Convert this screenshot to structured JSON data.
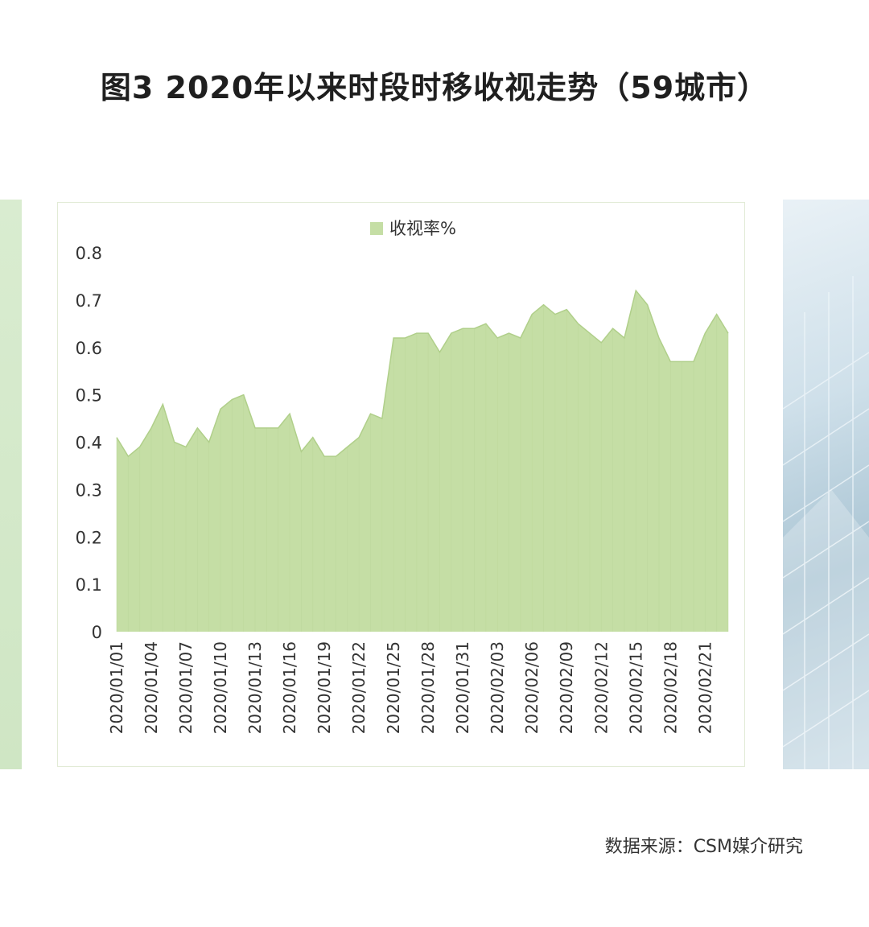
{
  "title": "图3  2020年以来时段时移收视走势（59城市）",
  "source": "数据来源：CSM媒介研究",
  "colors": {
    "area_fill": "#c5dea5",
    "area_line": "#b0cf8a",
    "left_strip": "#d3e8c8"
  },
  "chart_data": {
    "type": "area",
    "title": "",
    "xlabel": "",
    "ylabel": "",
    "legend": "top-center",
    "grid": false,
    "ylim": [
      0,
      0.8
    ],
    "yticks": [
      "0",
      "0.1",
      "0.2",
      "0.3",
      "0.4",
      "0.5",
      "0.6",
      "0.7",
      "0.8"
    ],
    "x_tick_labels": [
      "2020/01/01",
      "2020/01/04",
      "2020/01/07",
      "2020/01/10",
      "2020/01/13",
      "2020/01/16",
      "2020/01/19",
      "2020/01/22",
      "2020/01/25",
      "2020/01/28",
      "2020/01/31",
      "2020/02/03",
      "2020/02/06",
      "2020/02/09",
      "2020/02/12",
      "2020/02/15",
      "2020/02/18",
      "2020/02/21"
    ],
    "series": [
      {
        "name": "收视率%",
        "x": [
          "2020/01/01",
          "2020/01/02",
          "2020/01/03",
          "2020/01/04",
          "2020/01/05",
          "2020/01/06",
          "2020/01/07",
          "2020/01/08",
          "2020/01/09",
          "2020/01/10",
          "2020/01/11",
          "2020/01/12",
          "2020/01/13",
          "2020/01/14",
          "2020/01/15",
          "2020/01/16",
          "2020/01/17",
          "2020/01/18",
          "2020/01/19",
          "2020/01/20",
          "2020/01/21",
          "2020/01/22",
          "2020/01/23",
          "2020/01/24",
          "2020/01/25",
          "2020/01/26",
          "2020/01/27",
          "2020/01/28",
          "2020/01/29",
          "2020/01/30",
          "2020/01/31",
          "2020/02/01",
          "2020/02/02",
          "2020/02/03",
          "2020/02/04",
          "2020/02/05",
          "2020/02/06",
          "2020/02/07",
          "2020/02/08",
          "2020/02/09",
          "2020/02/10",
          "2020/02/11",
          "2020/02/12",
          "2020/02/13",
          "2020/02/14",
          "2020/02/15",
          "2020/02/16",
          "2020/02/17",
          "2020/02/18",
          "2020/02/19",
          "2020/02/20",
          "2020/02/21",
          "2020/02/22",
          "2020/02/23"
        ],
        "values": [
          0.41,
          0.37,
          0.39,
          0.43,
          0.48,
          0.4,
          0.39,
          0.43,
          0.4,
          0.47,
          0.49,
          0.5,
          0.43,
          0.43,
          0.43,
          0.46,
          0.38,
          0.41,
          0.37,
          0.37,
          0.39,
          0.41,
          0.46,
          0.45,
          0.62,
          0.62,
          0.63,
          0.63,
          0.59,
          0.63,
          0.64,
          0.64,
          0.65,
          0.62,
          0.63,
          0.62,
          0.67,
          0.69,
          0.67,
          0.68,
          0.65,
          0.63,
          0.61,
          0.64,
          0.62,
          0.72,
          0.69,
          0.62,
          0.57,
          0.57,
          0.57,
          0.63,
          0.67,
          0.63
        ]
      }
    ]
  }
}
